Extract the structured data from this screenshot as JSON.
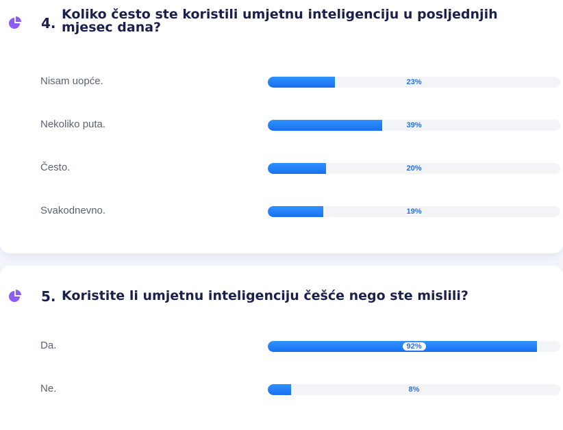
{
  "colors": {
    "accent": "#8b5cf6",
    "bar": "#1f7cf7",
    "track": "#f3f4f7",
    "title": "#1b1f4b"
  },
  "questions": [
    {
      "number": "4.",
      "title": "Koliko često ste koristili umjetnu inteligenciju u posljednjih mjesec dana?",
      "icon": "pie-chart-icon",
      "options": [
        {
          "label": "Nisam uopće.",
          "percent": 23,
          "text": "23%"
        },
        {
          "label": "Nekoliko puta.",
          "percent": 39,
          "text": "39%"
        },
        {
          "label": "Često.",
          "percent": 20,
          "text": "20%"
        },
        {
          "label": "Svakodnevno.",
          "percent": 19,
          "text": "19%"
        }
      ]
    },
    {
      "number": "5.",
      "title": "Koristite li umjetnu inteligenciju češće nego ste mislili?",
      "icon": "pie-chart-icon",
      "options": [
        {
          "label": "Da.",
          "percent": 92,
          "text": "92%"
        },
        {
          "label": "Ne.",
          "percent": 8,
          "text": "8%"
        }
      ]
    }
  ]
}
